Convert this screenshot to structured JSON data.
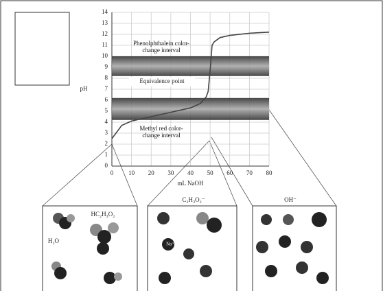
{
  "chart_data": {
    "type": "line",
    "y_label": "pH",
    "x_label": "mL NaOH",
    "x": [
      0,
      5,
      10,
      20,
      25,
      30,
      40,
      45,
      48,
      49,
      50,
      51,
      52,
      55,
      60,
      70,
      80
    ],
    "series": [
      {
        "color": "#444444",
        "values": [
          2.5,
          3.7,
          4.1,
          4.5,
          4.7,
          4.9,
          5.3,
          5.7,
          6.3,
          6.8,
          8.7,
          11.0,
          11.3,
          11.7,
          11.9,
          12.1,
          12.2
        ]
      }
    ],
    "xlim": [
      0,
      80
    ],
    "xticks": [
      0,
      10,
      20,
      30,
      40,
      50,
      60,
      70,
      80
    ],
    "ylim": [
      0,
      14
    ],
    "yticks": [
      0,
      1,
      2,
      3,
      4,
      5,
      6,
      7,
      8,
      9,
      10,
      11,
      12,
      13,
      14
    ],
    "grid": true,
    "bands": [
      {
        "low": 8.2,
        "high": 10,
        "label": [
          "Phenolphthalein color-",
          "change interval"
        ]
      },
      {
        "low": 4.2,
        "high": 6.2,
        "label": [
          "Methyl red color-",
          "change interval"
        ]
      }
    ],
    "annotations": [
      {
        "text": "Equivalence point"
      }
    ]
  },
  "panels": [
    {
      "labels": [
        "HC₂H₃O₂",
        "H₂O"
      ]
    },
    {
      "labels": [
        "C₂H₃O₂⁻",
        "Na⁺"
      ]
    },
    {
      "labels": [
        "OH⁻"
      ]
    }
  ]
}
